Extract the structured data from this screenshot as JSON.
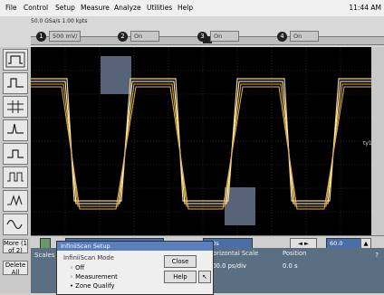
{
  "menu": [
    "File",
    "Control",
    "Setup",
    "Measure",
    "Analyze",
    "Utilities",
    "Help"
  ],
  "clock": "11:44 AM",
  "toolbar": {
    "small_text": "50.0 GSa/s   1.00 kpts",
    "ch1_value": "500 mV/",
    "channels": [
      {
        "badge": "1",
        "text": "500 mV/"
      },
      {
        "badge": "2",
        "text": "On"
      },
      {
        "badge": "3",
        "text": "On"
      },
      {
        "badge": "4",
        "text": "On"
      }
    ]
  },
  "sidebar": {
    "more_label": "More (1 of 2)",
    "delete_label": "Delete All"
  },
  "plot_marker": "ty1",
  "control": {
    "left_field": "InfiniiScan Setup",
    "mid_field": "0.0s",
    "right_field": "60.0"
  },
  "dialog": {
    "title": "InfiniiScan Setup",
    "group": "InfiniiScan Mode",
    "options": [
      "Off",
      "Measurement",
      "Zone Qualify"
    ],
    "close": "Close",
    "help": "Help"
  },
  "bottom": {
    "tab": "Scales",
    "horizontal": "Horizontal Scale",
    "position": "Position",
    "hval": "200.0 ps/div",
    "pval": "0.0 s",
    "question": "?"
  },
  "colors": {
    "trace1": "#f2d27b",
    "trace2": "#ffffff",
    "trace3": "#f0b000",
    "trace4": "#d8ac7a",
    "zone": "#66768c"
  }
}
